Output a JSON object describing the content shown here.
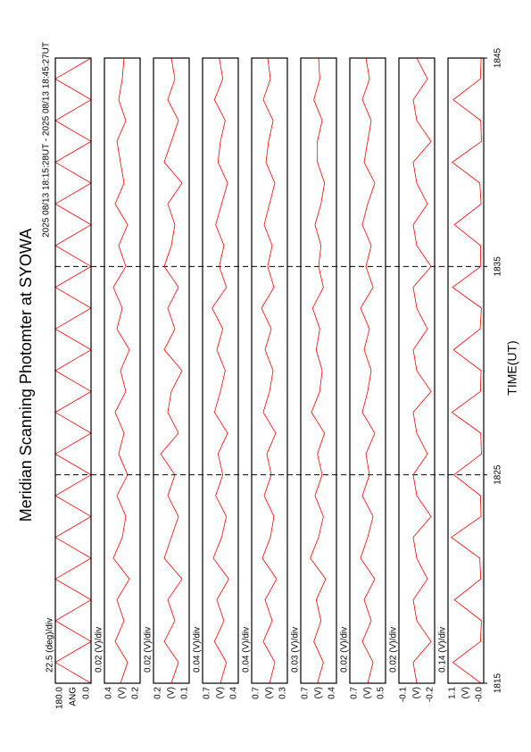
{
  "chart_data": {
    "type": "line",
    "title": "Meridian Scanning Photomter at SYOWA",
    "subtitle": "2025 08/13 18:15:28UT - 2025 08/13 18:45:27UT",
    "xlabel": "TIME(UT)",
    "xlim": [
      15,
      45
    ],
    "xticks": [
      {
        "value": 15,
        "label": "1815"
      },
      {
        "value": 25,
        "label": "1825"
      },
      {
        "value": 35,
        "label": "1835"
      },
      {
        "value": 45,
        "label": "1845"
      }
    ],
    "grid": true,
    "x": [
      15,
      16,
      17,
      18,
      19,
      20,
      21,
      22,
      23,
      24,
      25,
      26,
      27,
      28,
      29,
      30,
      31,
      32,
      33,
      34,
      35,
      36,
      37,
      38,
      39,
      40,
      41,
      42,
      43,
      44,
      45
    ],
    "panels": [
      {
        "unit": "ANG",
        "scale": "22.5 (deg)/div",
        "ylim": [
          0,
          180
        ],
        "yticks": [
          {
            "value": 0,
            "label": "0.0"
          },
          {
            "value": 180,
            "label": "180.0"
          }
        ],
        "color": "#ff0000",
        "values": [
          0,
          180,
          0,
          180,
          0,
          180,
          0,
          180,
          0,
          180,
          0,
          180,
          0,
          180,
          0,
          180,
          0,
          180,
          0,
          180,
          0,
          180,
          0,
          180,
          0,
          180,
          0,
          180,
          0,
          180,
          0
        ]
      },
      {
        "unit": "(V)",
        "scale": "0.02 (V)/div",
        "ylim": [
          0.2,
          0.4
        ],
        "yticks": [
          0.2,
          0.4
        ],
        "color": "#ff0000",
        "values": [
          0.31,
          0.27,
          0.34,
          0.29,
          0.33,
          0.26,
          0.35,
          0.3,
          0.28,
          0.33,
          0.27,
          0.32,
          0.29,
          0.34,
          0.28,
          0.31,
          0.26,
          0.33,
          0.3,
          0.35,
          0.28,
          0.32,
          0.27,
          0.34,
          0.29,
          0.31,
          0.33,
          0.28,
          0.32,
          0.3,
          0.29
        ]
      },
      {
        "unit": "(V)",
        "scale": "0.02 (V)/div",
        "ylim": [
          0.1,
          0.2
        ],
        "yticks": [
          0.1,
          0.2
        ],
        "color": "#ff0000",
        "values": [
          0.15,
          0.13,
          0.17,
          0.14,
          0.16,
          0.12,
          0.17,
          0.15,
          0.13,
          0.16,
          0.14,
          0.18,
          0.13,
          0.16,
          0.15,
          0.12,
          0.17,
          0.14,
          0.16,
          0.13,
          0.17,
          0.15,
          0.14,
          0.16,
          0.12,
          0.17,
          0.15,
          0.13,
          0.16,
          0.14,
          0.15
        ]
      },
      {
        "unit": "(V)",
        "scale": "0.04 (V)/div",
        "ylim": [
          0.4,
          0.7
        ],
        "yticks": [
          0.4,
          0.7
        ],
        "color": "#ff0000",
        "values": [
          0.55,
          0.5,
          0.6,
          0.52,
          0.58,
          0.48,
          0.61,
          0.54,
          0.5,
          0.59,
          0.53,
          0.57,
          0.49,
          0.6,
          0.55,
          0.51,
          0.58,
          0.53,
          0.62,
          0.5,
          0.56,
          0.52,
          0.59,
          0.54,
          0.49,
          0.57,
          0.55,
          0.51,
          0.6,
          0.53,
          0.56
        ]
      },
      {
        "unit": "(V)",
        "scale": "0.04 (V)/div",
        "ylim": [
          0.3,
          0.7
        ],
        "yticks": [
          0.3,
          0.7
        ],
        "color": "#ff0000",
        "values": [
          0.5,
          0.44,
          0.57,
          0.47,
          0.55,
          0.42,
          0.58,
          0.49,
          0.45,
          0.56,
          0.48,
          0.53,
          0.43,
          0.57,
          0.5,
          0.46,
          0.55,
          0.48,
          0.59,
          0.45,
          0.52,
          0.47,
          0.56,
          0.5,
          0.44,
          0.54,
          0.51,
          0.46,
          0.57,
          0.49,
          0.52
        ]
      },
      {
        "unit": "(V)",
        "scale": "0.03 (V)/div",
        "ylim": [
          0.4,
          0.7
        ],
        "yticks": [
          0.4,
          0.7
        ],
        "color": "#ff0000",
        "values": [
          0.56,
          0.51,
          0.59,
          0.53,
          0.57,
          0.49,
          0.62,
          0.55,
          0.51,
          0.58,
          0.52,
          0.56,
          0.5,
          0.61,
          0.54,
          0.52,
          0.57,
          0.54,
          0.6,
          0.51,
          0.55,
          0.53,
          0.58,
          0.53,
          0.5,
          0.56,
          0.56,
          0.52,
          0.59,
          0.54,
          0.55
        ]
      },
      {
        "unit": "(V)",
        "scale": "0.02 (V)/div",
        "ylim": [
          0.5,
          0.7
        ],
        "yticks": [
          0.5,
          0.7
        ],
        "color": "#ff0000",
        "values": [
          0.6,
          0.57,
          0.63,
          0.58,
          0.62,
          0.56,
          0.64,
          0.6,
          0.57,
          0.63,
          0.59,
          0.61,
          0.56,
          0.63,
          0.6,
          0.58,
          0.62,
          0.59,
          0.64,
          0.57,
          0.61,
          0.58,
          0.63,
          0.6,
          0.56,
          0.62,
          0.6,
          0.58,
          0.63,
          0.59,
          0.61
        ]
      },
      {
        "unit": "(V)",
        "scale": "0.02 (V)/div",
        "ylim": [
          -0.2,
          -0.1
        ],
        "yticks": [
          -0.2,
          -0.1
        ],
        "color": "#ff0000",
        "values": [
          -0.15,
          -0.14,
          -0.19,
          -0.15,
          -0.14,
          -0.18,
          -0.15,
          -0.14,
          -0.19,
          -0.15,
          -0.14,
          -0.18,
          -0.15,
          -0.14,
          -0.19,
          -0.15,
          -0.14,
          -0.18,
          -0.15,
          -0.14,
          -0.19,
          -0.15,
          -0.14,
          -0.18,
          -0.15,
          -0.14,
          -0.19,
          -0.15,
          -0.14,
          -0.18,
          -0.15
        ]
      },
      {
        "unit": "(V)",
        "scale": "0.14 (V)/div",
        "ylim": [
          0,
          1.1
        ],
        "yticks": [
          {
            "value": 0,
            "label": "-0.0"
          },
          1.1
        ],
        "color": "#ff0000",
        "values": [
          0.08,
          0.95,
          0.1,
          0.07,
          0.9,
          0.09,
          0.12,
          1.0,
          0.08,
          0.1,
          0.92,
          0.07,
          0.09,
          0.98,
          0.1,
          0.08,
          0.93,
          0.11,
          0.07,
          0.96,
          0.09,
          0.1,
          0.9,
          0.08,
          0.12,
          0.97,
          0.07,
          0.09,
          0.94,
          0.1,
          0.08
        ]
      }
    ]
  }
}
